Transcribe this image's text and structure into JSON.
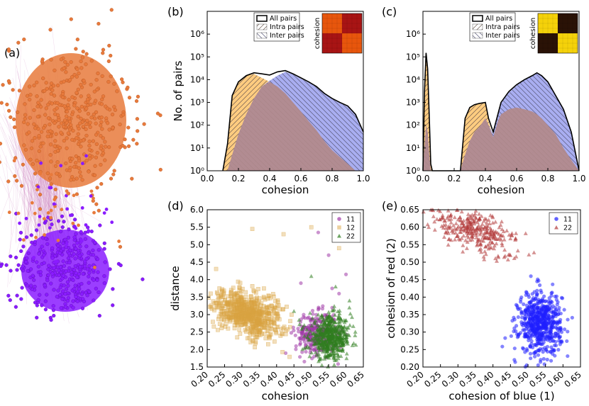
{
  "panels": {
    "a": "(a)",
    "b": "(b)",
    "c": "(c)",
    "d": "(d)",
    "e": "(e)"
  },
  "colors": {
    "orange": "#e87a3c",
    "purple": "#8a1cff",
    "hist_all": "#000000",
    "hist_intra": "#ffcc80",
    "hist_inter": "#9aa0ee",
    "hist_overlap": "#b38a8a",
    "d_11": "#a13aa8",
    "d_12": "#d9a441",
    "d_22": "#2f7d1f",
    "e_11": "#1f1fff",
    "e_22": "#b23a3a"
  },
  "network": {
    "icon": "network-graph"
  },
  "chart_data": [
    {
      "panel": "b",
      "type": "area",
      "xlabel": "cohesion",
      "ylabel": "No. of pairs",
      "xlim": [
        0.0,
        1.0
      ],
      "ylim_log10": [
        0,
        7
      ],
      "yscale": "log",
      "xticks": [
        "0.0",
        "0.2",
        "0.4",
        "0.6",
        "0.8",
        "1.0"
      ],
      "yticks": [
        "10⁰",
        "10¹",
        "10²",
        "10³",
        "10⁴",
        "10⁵",
        "10⁶"
      ],
      "legend": {
        "placement": "top-right",
        "entries": [
          "All pairs",
          "Intra pairs",
          "Inter pairs"
        ]
      },
      "inset_label": "cohesion",
      "inset_colors": [
        "#e8560c",
        "#a81414"
      ],
      "x": [
        0.1,
        0.13,
        0.16,
        0.2,
        0.25,
        0.3,
        0.35,
        0.4,
        0.45,
        0.5,
        0.55,
        0.6,
        0.65,
        0.7,
        0.75,
        0.8,
        0.85,
        0.9,
        0.95,
        1.0
      ],
      "series": [
        {
          "name": "All pairs",
          "values": [
            1,
            15,
            2000,
            8000,
            15000,
            20000,
            18000,
            16000,
            22000,
            25000,
            18000,
            12000,
            8000,
            5000,
            2500,
            1500,
            1000,
            700,
            300,
            50
          ]
        },
        {
          "name": "Intra pairs",
          "values": [
            1,
            15,
            2000,
            8000,
            15000,
            18000,
            12000,
            8000,
            5000,
            2500,
            1000,
            400,
            150,
            60,
            20,
            8,
            4,
            2,
            1,
            1
          ]
        },
        {
          "name": "Inter pairs",
          "values": [
            1,
            1,
            5,
            40,
            300,
            1500,
            5000,
            9000,
            15000,
            22000,
            17000,
            11000,
            7500,
            4800,
            2400,
            1400,
            950,
            650,
            280,
            40
          ]
        }
      ]
    },
    {
      "panel": "c",
      "type": "area",
      "xlabel": "cohesion",
      "ylabel": "",
      "xlim": [
        0.0,
        1.0
      ],
      "ylim_log10": [
        0,
        7
      ],
      "yscale": "log",
      "xticks": [
        "0.0",
        "0.2",
        "0.4",
        "0.6",
        "0.8",
        "1.0"
      ],
      "yticks": [
        "10⁰",
        "10¹",
        "10²",
        "10³",
        "10⁴",
        "10⁵",
        "10⁶"
      ],
      "legend": {
        "placement": "top-right",
        "entries": [
          "All pairs",
          "Intra pairs",
          "Inter pairs"
        ]
      },
      "inset_label": "cohesion",
      "inset_colors": [
        "#f5d20a",
        "#2a1206"
      ],
      "x": [
        0.0,
        0.01,
        0.02,
        0.03,
        0.04,
        0.05,
        0.06,
        0.24,
        0.27,
        0.3,
        0.33,
        0.36,
        0.4,
        0.42,
        0.45,
        0.48,
        0.5,
        0.55,
        0.6,
        0.65,
        0.7,
        0.73,
        0.76,
        0.8,
        0.85,
        0.9,
        0.95,
        1.0
      ],
      "series": [
        {
          "name": "All pairs",
          "values": [
            1,
            3000,
            150000,
            30000,
            300,
            2,
            1,
            1,
            200,
            600,
            800,
            900,
            1000,
            200,
            50,
            300,
            1000,
            3000,
            6000,
            10000,
            15000,
            20000,
            15000,
            8000,
            2000,
            500,
            50,
            1
          ]
        },
        {
          "name": "Intra pairs",
          "values": [
            1,
            3000,
            150000,
            30000,
            300,
            2,
            1,
            1,
            200,
            600,
            800,
            900,
            900,
            150,
            30,
            150,
            300,
            500,
            600,
            500,
            400,
            300,
            200,
            100,
            40,
            10,
            3,
            1
          ]
        },
        {
          "name": "Inter pairs",
          "values": [
            1,
            10,
            100,
            50,
            5,
            1,
            1,
            1,
            5,
            20,
            50,
            80,
            200,
            100,
            40,
            250,
            900,
            2700,
            5500,
            9600,
            14600,
            19700,
            14800,
            7900,
            1960,
            490,
            48,
            1
          ]
        }
      ]
    },
    {
      "panel": "d",
      "type": "scatter",
      "xlabel": "cohesion",
      "ylabel": "distance",
      "xlim": [
        0.2,
        0.65
      ],
      "ylim": [
        1.5,
        6.0
      ],
      "xticks": [
        "0.20",
        "0.25",
        "0.30",
        "0.35",
        "0.40",
        "0.45",
        "0.50",
        "0.55",
        "0.60",
        "0.65"
      ],
      "yticks": [
        "1.5",
        "2.0",
        "2.5",
        "3.0",
        "3.5",
        "4.0",
        "4.5",
        "5.0",
        "5.5",
        "6.0"
      ],
      "legend": {
        "placement": "top-right",
        "entries": [
          "11",
          "12",
          "22"
        ]
      },
      "series": [
        {
          "name": "11",
          "marker": "circle",
          "n": 300,
          "cx": 0.515,
          "sx": 0.03,
          "cy": 2.45,
          "sy": 0.3,
          "outliers": [
            [
              0.52,
              5.35
            ],
            [
              0.55,
              4.7
            ],
            [
              0.6,
              4.15
            ],
            [
              0.56,
              3.75
            ],
            [
              0.47,
              3.9
            ],
            [
              0.58,
              3.6
            ]
          ]
        },
        {
          "name": "12",
          "marker": "square",
          "n": 650,
          "cx": 0.32,
          "sx": 0.05,
          "cy": 2.95,
          "sy": 0.35,
          "outliers": [
            [
              0.33,
              5.45
            ],
            [
              0.42,
              5.3
            ],
            [
              0.5,
              5.5
            ],
            [
              0.58,
              4.9
            ],
            [
              0.23,
              3.6
            ],
            [
              0.21,
              3.6
            ],
            [
              0.24,
              3.5
            ]
          ]
        },
        {
          "name": "22",
          "marker": "triangle",
          "n": 550,
          "cx": 0.555,
          "sx": 0.03,
          "cy": 2.35,
          "sy": 0.3,
          "outliers": [
            [
              0.5,
              4.1
            ],
            [
              0.57,
              3.8
            ],
            [
              0.61,
              3.4
            ],
            [
              0.45,
              3.1
            ]
          ]
        }
      ]
    },
    {
      "panel": "e",
      "type": "scatter",
      "xlabel": "cohesion of blue (1)",
      "ylabel": "cohesion of red (2)",
      "xlim": [
        0.2,
        0.65
      ],
      "ylim": [
        0.2,
        0.65
      ],
      "xticks": [
        "0.20",
        "0.25",
        "0.30",
        "0.35",
        "0.40",
        "0.45",
        "0.50",
        "0.55",
        "0.60",
        "0.65"
      ],
      "yticks": [
        "0.20",
        "0.25",
        "0.30",
        "0.35",
        "0.40",
        "0.45",
        "0.50",
        "0.55",
        "0.60",
        "0.65"
      ],
      "legend": {
        "placement": "top-right",
        "entries": [
          "11",
          "22"
        ]
      },
      "series": [
        {
          "name": "11",
          "marker": "circle",
          "n": 600,
          "cx": 0.535,
          "sx": 0.03,
          "cy": 0.325,
          "sy": 0.045
        },
        {
          "name": "22",
          "marker": "triangle",
          "n": 330,
          "cx": 0.34,
          "sx": 0.06,
          "cy": 0.545,
          "sy": 0.03
        }
      ]
    }
  ]
}
